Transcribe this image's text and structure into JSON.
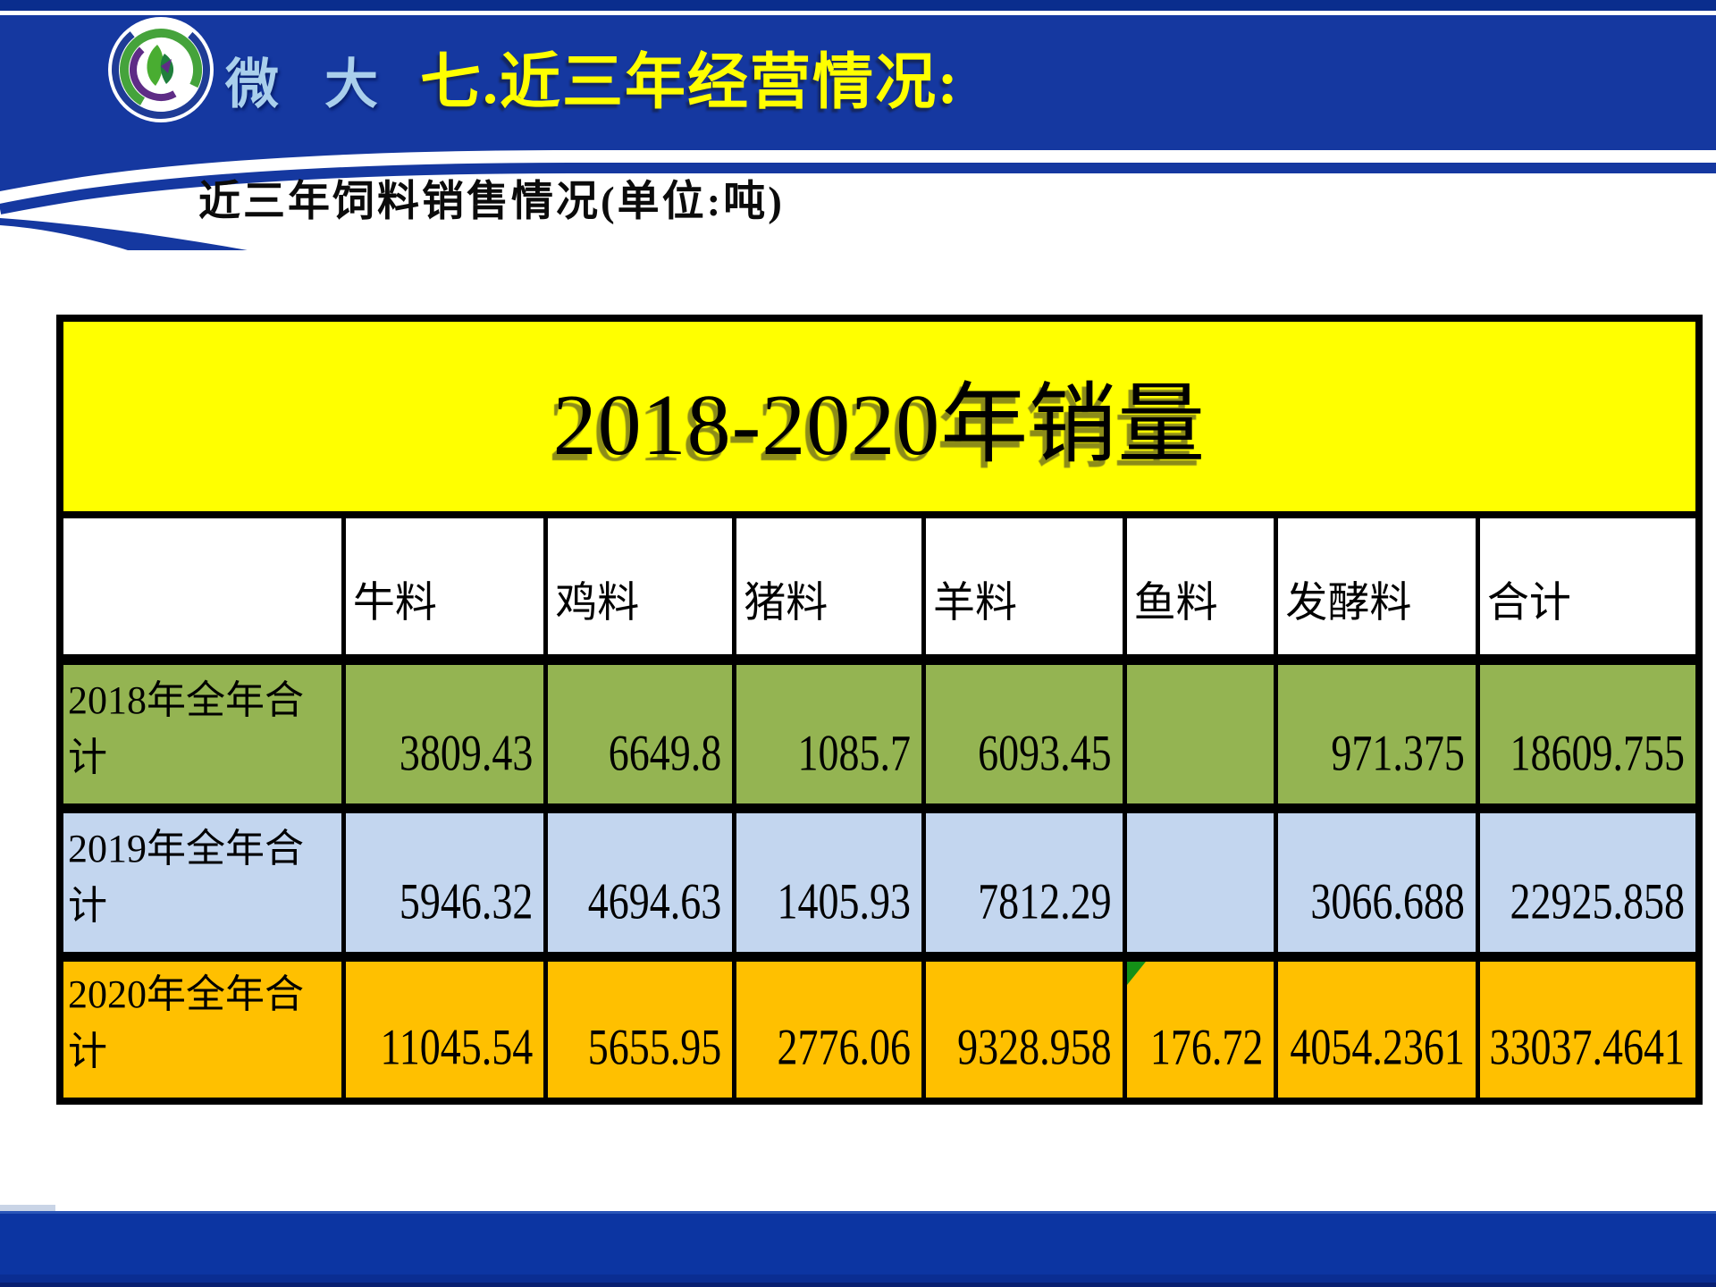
{
  "slide": {
    "logo_label": "微 大",
    "header_title": "七.近三年经营情况:",
    "subtitle": "近三年饲料销售情况(单位:吨)"
  },
  "table": {
    "banner_title": "2018-2020年销量",
    "corner_header": "",
    "column_headers": [
      "牛料",
      "鸡料",
      "猪料",
      "羊料",
      "鱼料",
      "发酵料",
      "合计"
    ],
    "rows": [
      {
        "label": "2018年全年合计",
        "style": "green",
        "values": [
          "3809.43",
          "6649.8",
          "1085.7",
          "6093.45",
          "",
          "971.375",
          "18609.755"
        ],
        "marker": null
      },
      {
        "label": "2019年全年合计",
        "style": "blue",
        "values": [
          "5946.32",
          "4694.63",
          "1405.93",
          "7812.29",
          "",
          "3066.688",
          "22925.858"
        ],
        "marker": null
      },
      {
        "label": "2020年全年合计",
        "style": "orange",
        "values": [
          "11045.54",
          "5655.95",
          "2776.06",
          "9328.958",
          "176.72",
          "4054.2361",
          "33037.4641"
        ],
        "marker": 4
      }
    ]
  },
  "colors": {
    "banner_blue": "#1538A0",
    "top_strip_blue": "#0A2D8D",
    "footer_blue": "#0C35A2",
    "table_banner_yellow": "#FFFF00",
    "title_yellow": "#FFFF00",
    "row_green": "#94B452",
    "row_light_blue": "#C3D6EF",
    "row_orange": "#FFC000",
    "logo_text_blue": "#A9CFEC",
    "marker_green": "#149017"
  }
}
